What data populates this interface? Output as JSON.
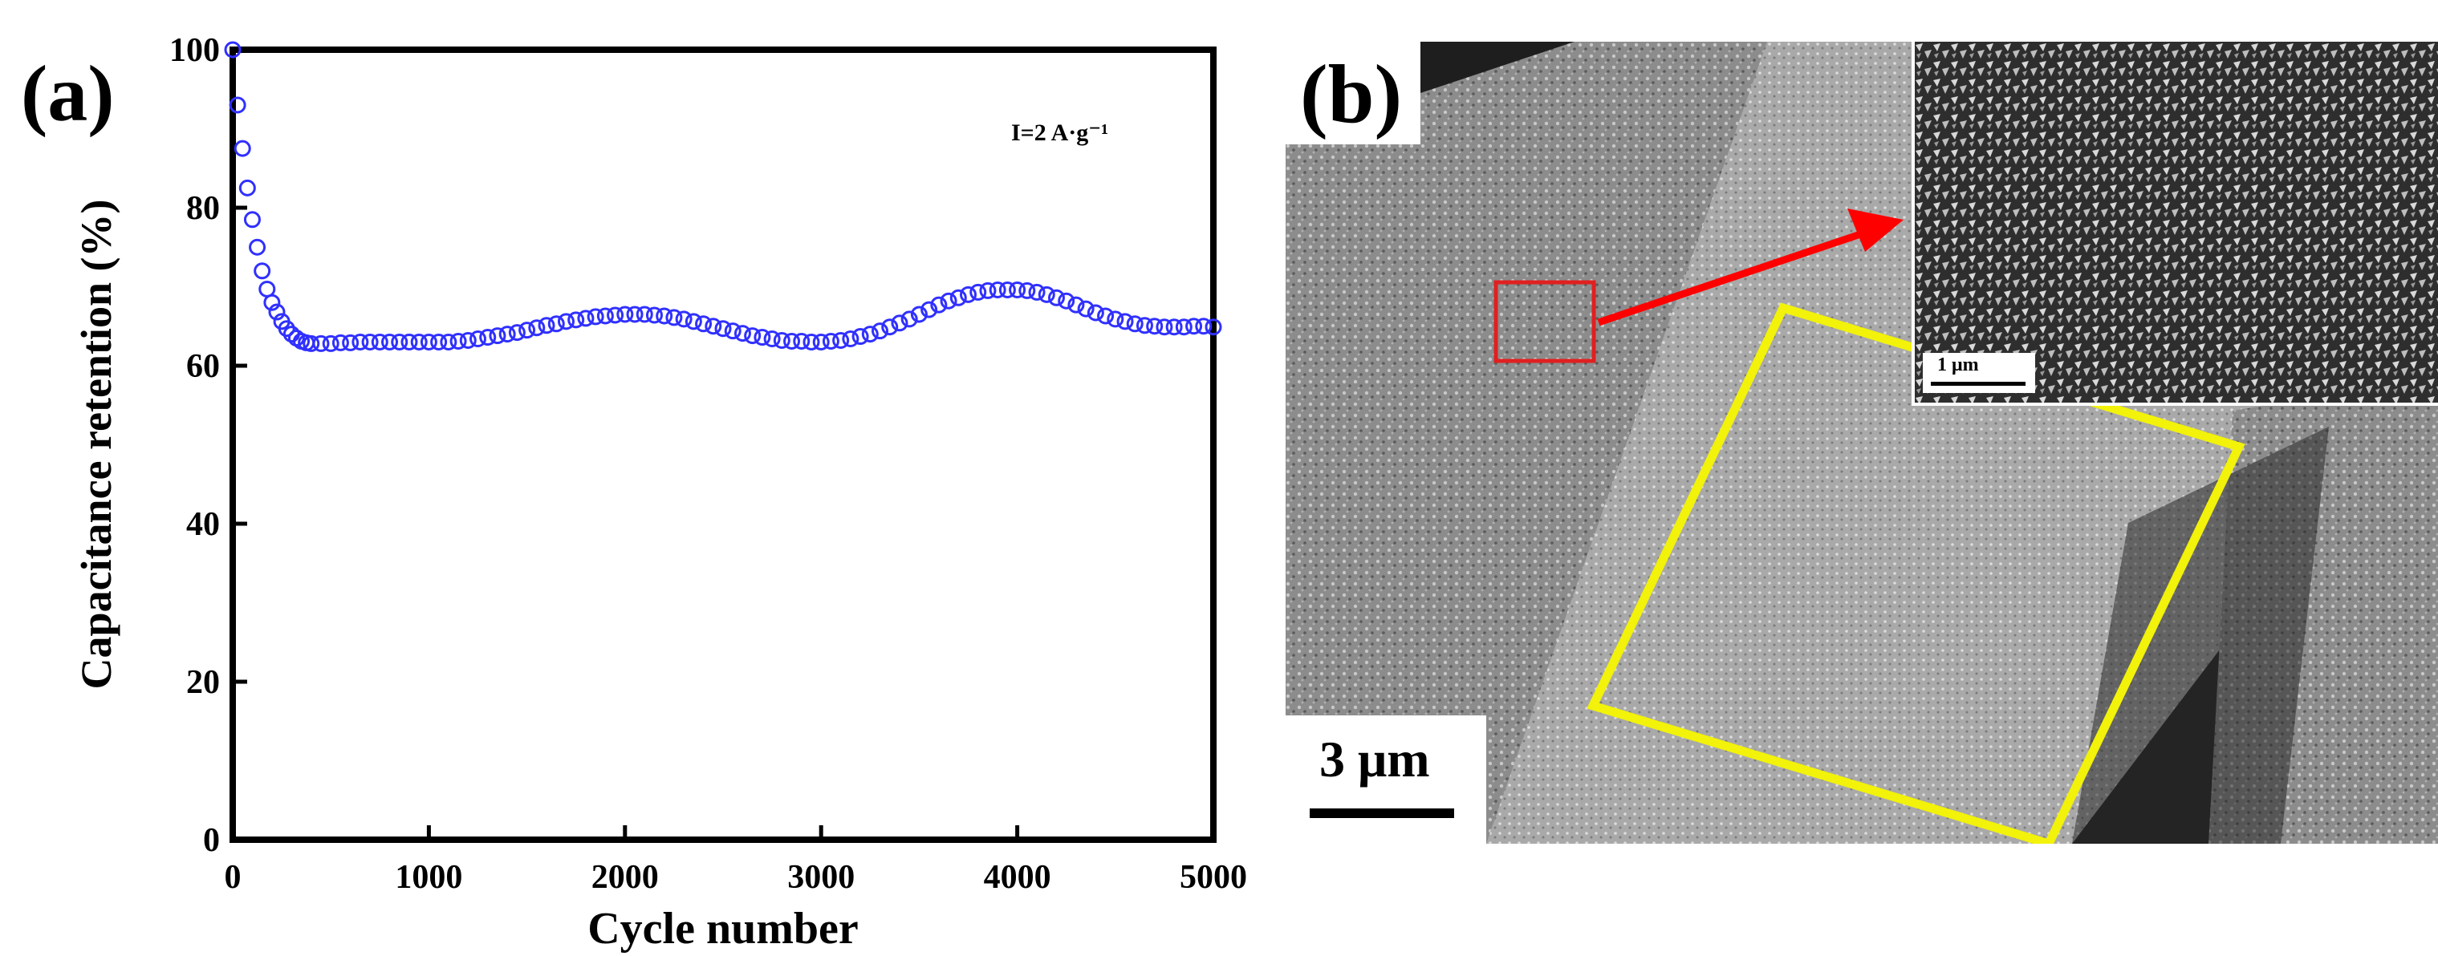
{
  "panel_a": {
    "label": "(a)"
  },
  "panel_b": {
    "label": "(b)",
    "scale_bar": "3 μm",
    "inset_scale_bar": "1 μm",
    "colors": {
      "red_box": "#e02020",
      "arrow": "#ff0000",
      "yellow_box": "#f2f20a"
    }
  },
  "chart_data": {
    "type": "scatter",
    "title": "",
    "xlabel": "Cycle number",
    "ylabel": "Capacitance retention (%)",
    "annotation": "I=2 A·g⁻¹",
    "xlim": [
      0,
      5000
    ],
    "ylim": [
      0,
      100
    ],
    "xticks": [
      0,
      1000,
      2000,
      3000,
      4000,
      5000
    ],
    "yticks": [
      0,
      20,
      40,
      60,
      80,
      100
    ],
    "grid": false,
    "marker_color": "#3030ff",
    "x": [
      0,
      25,
      50,
      75,
      100,
      125,
      150,
      175,
      200,
      225,
      250,
      275,
      300,
      325,
      350,
      375,
      400,
      450,
      500,
      550,
      600,
      650,
      700,
      750,
      800,
      850,
      900,
      950,
      1000,
      1050,
      1100,
      1150,
      1200,
      1250,
      1300,
      1350,
      1400,
      1450,
      1500,
      1550,
      1600,
      1650,
      1700,
      1750,
      1800,
      1850,
      1900,
      1950,
      2000,
      2050,
      2100,
      2150,
      2200,
      2250,
      2300,
      2350,
      2400,
      2450,
      2500,
      2550,
      2600,
      2650,
      2700,
      2750,
      2800,
      2850,
      2900,
      2950,
      3000,
      3050,
      3100,
      3150,
      3200,
      3250,
      3300,
      3350,
      3400,
      3450,
      3500,
      3550,
      3600,
      3650,
      3700,
      3750,
      3800,
      3850,
      3900,
      3950,
      4000,
      4050,
      4100,
      4150,
      4200,
      4250,
      4300,
      4350,
      4400,
      4450,
      4500,
      4550,
      4600,
      4650,
      4700,
      4750,
      4800,
      4850,
      4900,
      4950,
      5000
    ],
    "y": [
      100,
      93,
      87.5,
      82.5,
      78.5,
      75,
      72,
      69.7,
      68,
      66.8,
      65.6,
      64.7,
      64,
      63.5,
      63.1,
      62.9,
      62.8,
      62.8,
      62.8,
      62.9,
      62.9,
      63,
      63,
      63,
      63,
      63,
      63,
      63,
      63,
      63,
      63,
      63.1,
      63.2,
      63.4,
      63.6,
      63.8,
      64,
      64.2,
      64.5,
      64.8,
      65.1,
      65.3,
      65.6,
      65.8,
      66,
      66.2,
      66.3,
      66.4,
      66.5,
      66.5,
      66.5,
      66.4,
      66.3,
      66.1,
      65.9,
      65.6,
      65.3,
      65,
      64.7,
      64.4,
      64.1,
      63.8,
      63.6,
      63.4,
      63.2,
      63.1,
      63.1,
      63,
      63,
      63.1,
      63.2,
      63.4,
      63.7,
      64,
      64.4,
      64.9,
      65.4,
      65.9,
      66.5,
      67.1,
      67.7,
      68.2,
      68.6,
      69,
      69.3,
      69.5,
      69.6,
      69.6,
      69.6,
      69.5,
      69.3,
      69,
      68.6,
      68.2,
      67.7,
      67.2,
      66.7,
      66.3,
      65.9,
      65.6,
      65.3,
      65.1,
      65,
      64.9,
      64.9,
      64.9,
      65,
      65,
      64.9
    ]
  }
}
